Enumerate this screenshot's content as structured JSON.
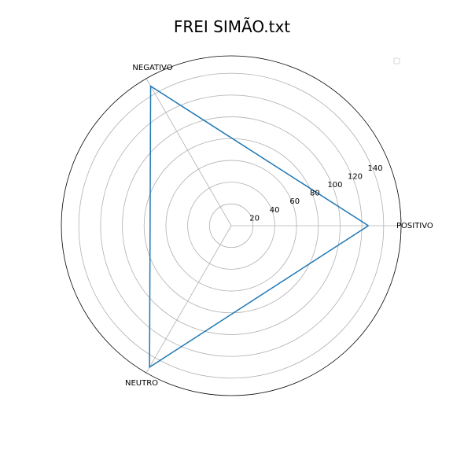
{
  "chart_data": {
    "type": "radar",
    "title": "FREI SIMÃO.txt",
    "categories": [
      "POSITIVO",
      "NEGATIVO",
      "NEUTRO"
    ],
    "series": [
      {
        "values": [
          126,
          148,
          150
        ],
        "color": "#1f77b4"
      }
    ],
    "rlim": [
      0,
      156
    ],
    "r_ticks": [
      20,
      40,
      60,
      80,
      100,
      120,
      140
    ],
    "grid": true,
    "legend": "top-right"
  }
}
